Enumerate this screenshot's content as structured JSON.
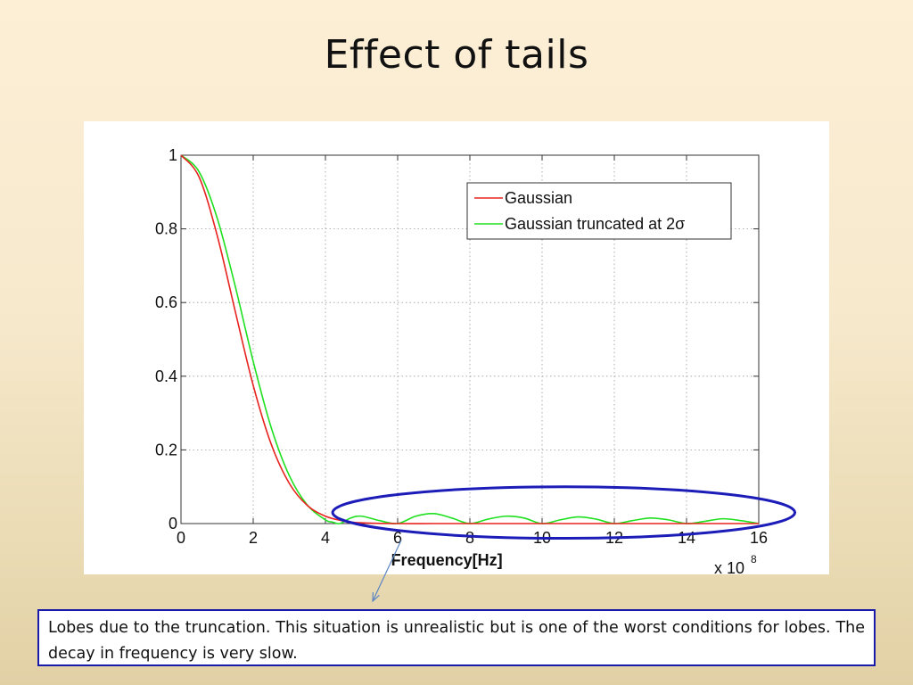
{
  "slide": {
    "title": "Effect of tails",
    "caption": "Lobes due to the truncation. This situation is unrealistic but is one of the worst conditions for lobes. The decay in frequency is very slow."
  },
  "chart_data": {
    "type": "line",
    "title": "",
    "xlabel": "Frequency[Hz]",
    "ylabel": "",
    "x_multiplier_label": "x 10",
    "x_multiplier_exponent": "8",
    "xlim": [
      0,
      16
    ],
    "ylim": [
      0,
      1
    ],
    "x_ticks": [
      "0",
      "2",
      "4",
      "6",
      "8",
      "10",
      "12",
      "14",
      "16"
    ],
    "y_ticks": [
      "0",
      "0.2",
      "0.4",
      "0.6",
      "0.8",
      "1"
    ],
    "grid": true,
    "legend_position": "top-right",
    "legend": [
      "Gaussian",
      "Gaussian truncated at 2σ"
    ],
    "series": [
      {
        "name": "Gaussian",
        "color": "#e8231f",
        "x": [
          0,
          0.5,
          1,
          1.5,
          2,
          2.5,
          3,
          3.5,
          4,
          4.5,
          5,
          6,
          7,
          8,
          10,
          12,
          14,
          16
        ],
        "values": [
          1.0,
          0.941,
          0.783,
          0.577,
          0.375,
          0.215,
          0.109,
          0.049,
          0.02,
          0.007,
          0.002,
          0.0,
          0.0,
          0.0,
          0.0,
          0.0,
          0.0,
          0.0
        ]
      },
      {
        "name": "Gaussian truncated at 2σ",
        "color": "#1fe01f",
        "x": [
          0,
          0.5,
          1,
          1.5,
          2,
          2.5,
          3,
          3.5,
          4,
          4.2,
          4.4,
          4.7,
          5,
          5.5,
          6,
          6.5,
          7,
          7.5,
          8,
          8.5,
          9,
          9.5,
          10,
          10.5,
          11,
          11.5,
          12,
          12.5,
          13,
          13.5,
          14,
          14.5,
          15,
          15.5,
          16
        ],
        "values": [
          1.0,
          0.955,
          0.83,
          0.645,
          0.44,
          0.26,
          0.13,
          0.05,
          0.01,
          0.004,
          0.0,
          0.015,
          0.02,
          0.008,
          0.0,
          0.02,
          0.027,
          0.015,
          0.0,
          0.012,
          0.02,
          0.015,
          0.0,
          0.01,
          0.018,
          0.012,
          0.0,
          0.008,
          0.015,
          0.01,
          0.0,
          0.006,
          0.013,
          0.008,
          0.0
        ]
      }
    ],
    "annotation": {
      "ellipse_color": "#1c1cb8",
      "arrow_color": "#5b86c4",
      "ellipse_x_range": [
        4.2,
        17.0
      ],
      "ellipse_y_range": [
        -0.04,
        0.1
      ]
    }
  }
}
